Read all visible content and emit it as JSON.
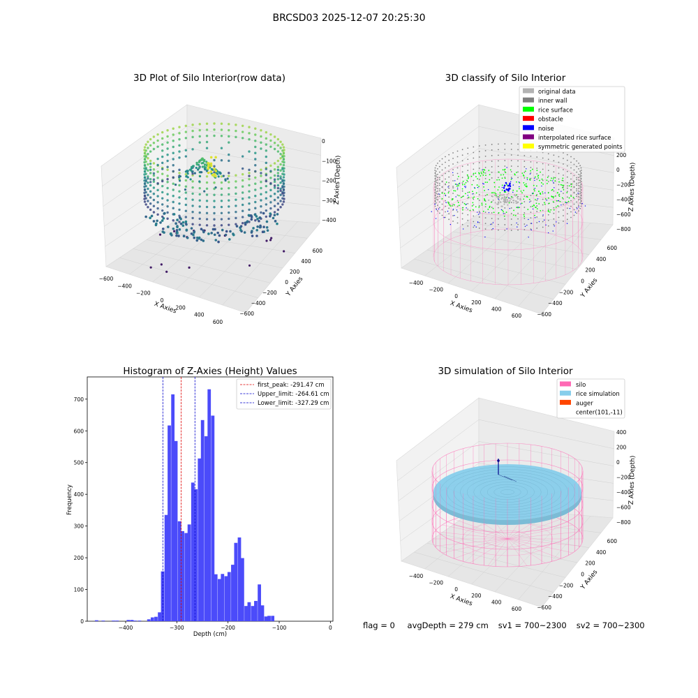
{
  "figure": {
    "suptitle": "BRCSD03 2025-12-07 20:25:30"
  },
  "status": {
    "flag": "flag = 0",
    "avg_depth": "avgDepth = 279 cm",
    "sv1": "sv1 = 700~2300",
    "sv2": "sv2 = 700~2300"
  },
  "colors": {
    "histogram_bar": "#4b4bfa",
    "first_peak_line": "#e00000",
    "limit_line": "#0000cc",
    "original": "#b3b3b3",
    "inner_wall": "#808080",
    "rice_surface": "#00ff00",
    "obstacle": "#ff0000",
    "noise": "#0000ff",
    "interpolated": "#800080",
    "symmetric": "#ffff00",
    "silo": "#ff69b4",
    "rice_sim": "#87ceeb",
    "auger": "#ff4500"
  },
  "chart_data": [
    {
      "type": "scatter",
      "subtype": "3d",
      "title": "3D Plot of Silo Interior(row data)",
      "xlabel": "X Axies",
      "ylabel": "Y Axies",
      "zlabel": "Z Axies (Depth)",
      "x_ticks": [
        "−600",
        "−400",
        "−200",
        "0",
        "200",
        "400",
        "600"
      ],
      "y_ticks": [
        "−600",
        "−400",
        "−200",
        "0",
        "200",
        "400",
        "600"
      ],
      "z_ticks": [
        "0",
        "−100",
        "−200",
        "−300",
        "−400"
      ],
      "colormap": "viridis",
      "grid": true
    },
    {
      "type": "scatter",
      "subtype": "3d",
      "title": "3D classify of Silo Interior",
      "xlabel": "X Axies",
      "ylabel": "Y Axies",
      "zlabel": "Z Axies (Depth)",
      "x_ticks": [
        "−400",
        "−200",
        "0",
        "200",
        "400",
        "600"
      ],
      "y_ticks": [
        "−600",
        "−400",
        "−200",
        "0",
        "200",
        "400",
        "600"
      ],
      "z_ticks": [
        "200",
        "0",
        "−200",
        "−400",
        "−600",
        "−800"
      ],
      "legend_position": "top-right",
      "legend": [
        {
          "label": "original data",
          "color": "#b3b3b3"
        },
        {
          "label": "inner wall",
          "color": "#808080"
        },
        {
          "label": "rice surface",
          "color": "#00ff00"
        },
        {
          "label": "obstacle",
          "color": "#ff0000"
        },
        {
          "label": "noise",
          "color": "#0000ff"
        },
        {
          "label": "interpolated rice surface",
          "color": "#800080"
        },
        {
          "label": "symmetric generated points",
          "color": "#ffff00"
        }
      ],
      "grid": true
    },
    {
      "type": "bar",
      "subtype": "histogram",
      "title": "Histogram of Z-Axies (Height) Values",
      "xlabel": "Depth (cm)",
      "ylabel": "Frequency",
      "xlim": [
        -475,
        5
      ],
      "ylim": [
        0,
        770
      ],
      "x_ticks": [
        -400,
        -300,
        -200,
        -100,
        0
      ],
      "x_tick_labels": [
        "−400",
        "−300",
        "−200",
        "−100",
        "0"
      ],
      "y_ticks": [
        0,
        100,
        200,
        300,
        400,
        500,
        600,
        700
      ],
      "bin_width": 6.5,
      "bins": [
        [
          -460,
          3
        ],
        [
          -452,
          0
        ],
        [
          -447,
          2
        ],
        [
          -440,
          0
        ],
        [
          -427,
          2
        ],
        [
          -420,
          2
        ],
        [
          -408,
          0
        ],
        [
          -398,
          4
        ],
        [
          -391,
          4
        ],
        [
          -385,
          2
        ],
        [
          -376,
          2
        ],
        [
          -358,
          6
        ],
        [
          -351,
          12
        ],
        [
          -344,
          14
        ],
        [
          -337,
          28
        ],
        [
          -331,
          157
        ],
        [
          -324,
          335
        ],
        [
          -318,
          617
        ],
        [
          -311,
          715
        ],
        [
          -305,
          568
        ],
        [
          -298,
          315
        ],
        [
          -292,
          284
        ],
        [
          -285,
          278
        ],
        [
          -279,
          305
        ],
        [
          -272,
          437
        ],
        [
          -266,
          416
        ],
        [
          -259,
          513
        ],
        [
          -253,
          634
        ],
        [
          -246,
          583
        ],
        [
          -240,
          731
        ],
        [
          -233,
          648
        ],
        [
          -227,
          148
        ],
        [
          -220,
          133
        ],
        [
          -214,
          149
        ],
        [
          -207,
          142
        ],
        [
          -201,
          155
        ],
        [
          -194,
          178
        ],
        [
          -188,
          247
        ],
        [
          -181,
          264
        ],
        [
          -175,
          199
        ],
        [
          -168,
          48
        ],
        [
          -162,
          60
        ],
        [
          -155,
          48
        ],
        [
          -149,
          64
        ],
        [
          -142,
          116
        ],
        [
          -136,
          50
        ],
        [
          -129,
          15
        ],
        [
          -123,
          17
        ],
        [
          -116,
          17
        ]
      ],
      "lines": [
        {
          "name": "first_peak: -291.47 cm",
          "x": -291.47,
          "color": "#e00000"
        },
        {
          "name": "Upper_limit: -264.61 cm",
          "x": -264.61,
          "color": "#0000cc"
        },
        {
          "name": "Lower_limit: -327.29 cm",
          "x": -327.29,
          "color": "#0000cc"
        }
      ],
      "legend_position": "top-right"
    },
    {
      "type": "scatter",
      "subtype": "3d",
      "title": "3D simulation of Silo Interior",
      "xlabel": "X Axies",
      "ylabel": "Y Axies",
      "zlabel": "Z Axies (Depth)",
      "x_ticks": [
        "−400",
        "−200",
        "0",
        "200",
        "400",
        "600"
      ],
      "y_ticks": [
        "−600",
        "−400",
        "−200",
        "0",
        "200",
        "400",
        "600"
      ],
      "z_ticks": [
        "400",
        "200",
        "0",
        "−200",
        "−400",
        "−600",
        "−800"
      ],
      "legend_position": "top-right",
      "legend": [
        {
          "label": "silo",
          "color": "#ff69b4"
        },
        {
          "label": "rice simulation",
          "color": "#87ceeb"
        },
        {
          "label": "auger",
          "color": "#ff4500"
        },
        {
          "label": "center(101,-11)",
          "color": ""
        }
      ],
      "grid": true
    }
  ]
}
